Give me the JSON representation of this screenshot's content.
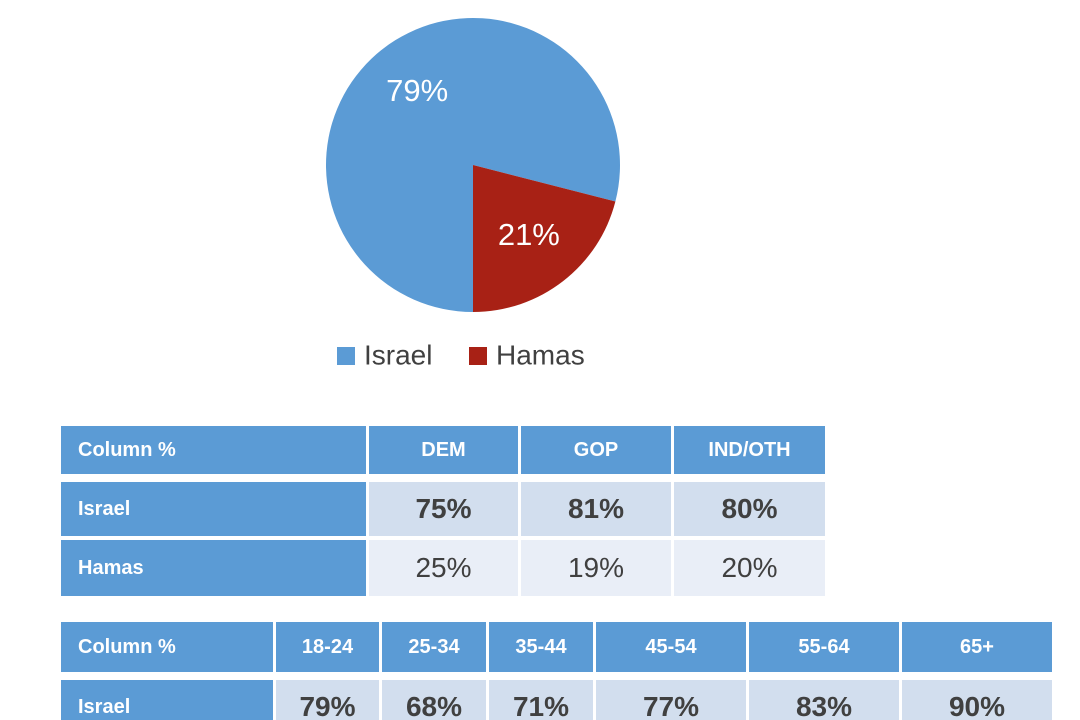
{
  "chart_data": {
    "type": "pie",
    "categories": [
      "Israel",
      "Hamas"
    ],
    "values": [
      79,
      21
    ],
    "value_labels": [
      "79%",
      "21%"
    ],
    "colors": [
      "#5b9bd5",
      "#a82115"
    ]
  },
  "table_party": {
    "header": [
      "Column %",
      "DEM",
      "GOP",
      "IND/OTH"
    ],
    "rows": [
      [
        "Israel",
        "75%",
        "81%",
        "80%"
      ],
      [
        "Hamas",
        "25%",
        "19%",
        "20%"
      ]
    ]
  },
  "table_age": {
    "header": [
      "Column %",
      "18-24",
      "25-34",
      "35-44",
      "45-54",
      "55-64",
      "65+"
    ],
    "rows": [
      [
        "Israel",
        "79%",
        "68%",
        "71%",
        "77%",
        "83%",
        "90%"
      ]
    ]
  }
}
